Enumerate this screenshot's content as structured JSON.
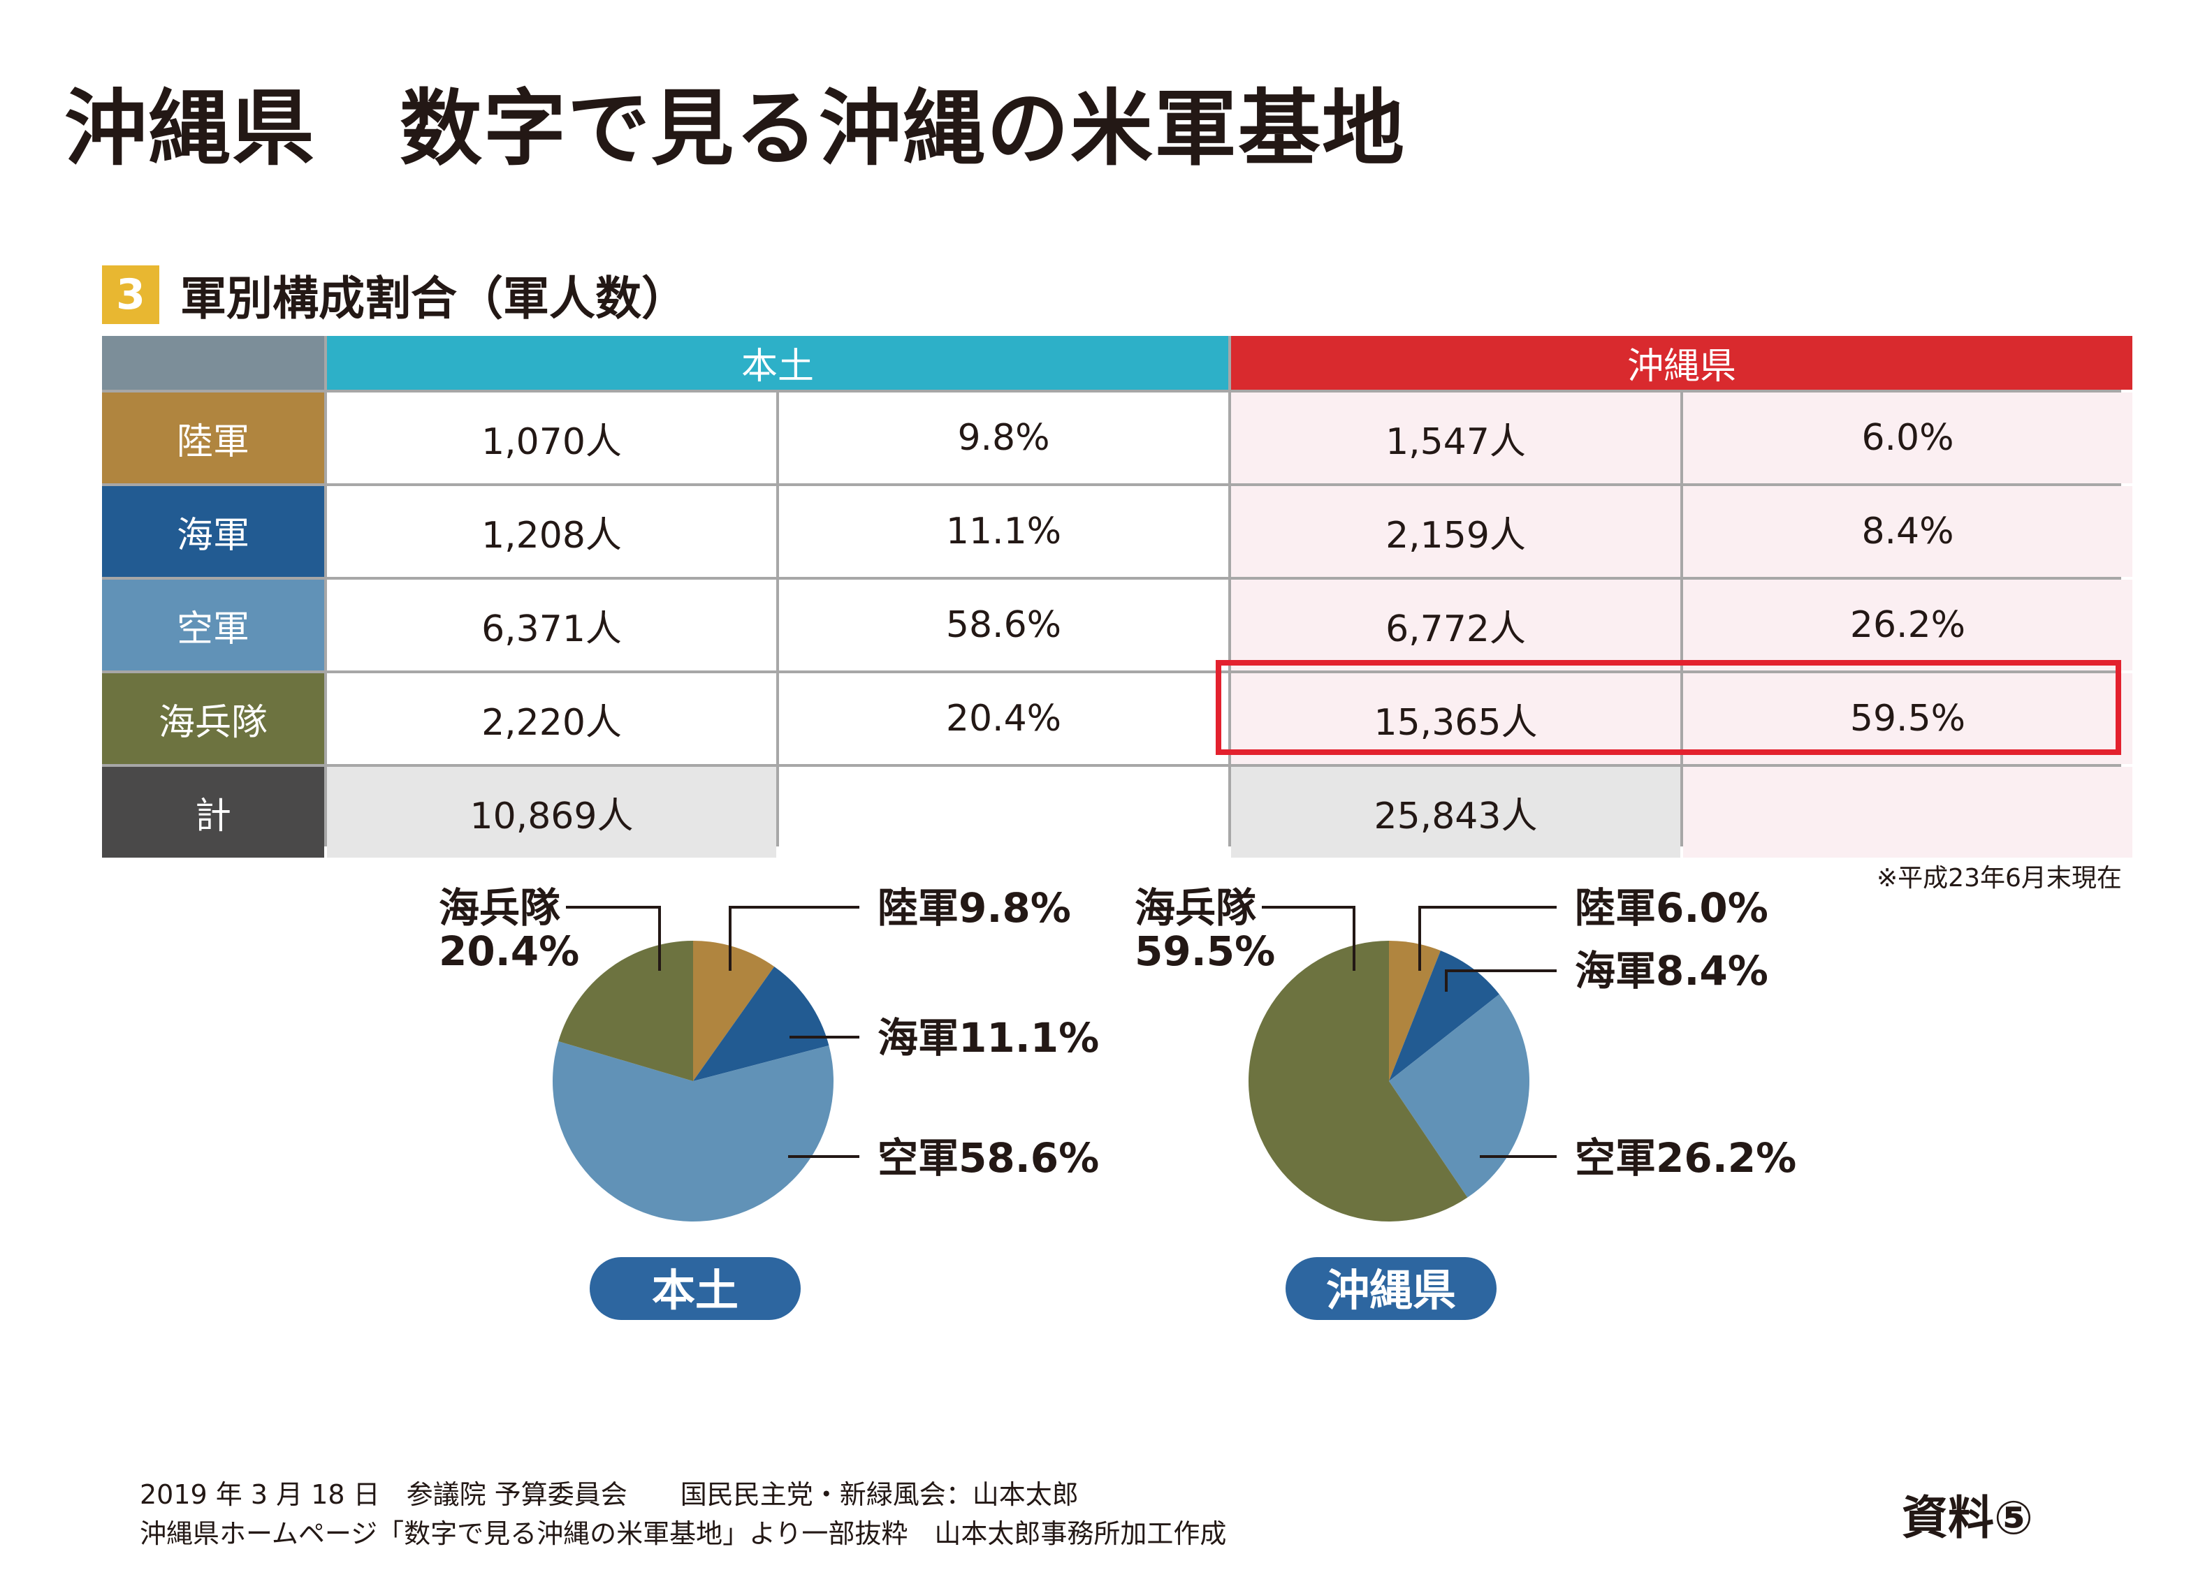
{
  "page_title": "沖縄県　数字で見る沖縄の米軍基地",
  "section": {
    "number": "3",
    "title": "軍別構成割合（軍人数）"
  },
  "colors": {
    "mainland_header": "#2db0c8",
    "okinawa_header": "#d92a2e",
    "corner": "#7c8e99",
    "army": "#b0853f",
    "navy": "#225b92",
    "air_force": "#6192b7",
    "marines": "#6d7340",
    "total": "#4a4949",
    "pill": "#2d66a0",
    "highlight": "#e3212e"
  },
  "table": {
    "headers": [
      "本土",
      "沖縄県"
    ],
    "rows": [
      {
        "label": "陸軍",
        "mainland_count": "1,070人",
        "mainland_pct": "9.8%",
        "okinawa_count": "1,547人",
        "okinawa_pct": "6.0%"
      },
      {
        "label": "海軍",
        "mainland_count": "1,208人",
        "mainland_pct": "11.1%",
        "okinawa_count": "2,159人",
        "okinawa_pct": "8.4%"
      },
      {
        "label": "空軍",
        "mainland_count": "6,371人",
        "mainland_pct": "58.6%",
        "okinawa_count": "6,772人",
        "okinawa_pct": "26.2%"
      },
      {
        "label": "海兵隊",
        "mainland_count": "2,220人",
        "mainland_pct": "20.4%",
        "okinawa_count": "15,365人",
        "okinawa_pct": "59.5%"
      },
      {
        "label": "計",
        "mainland_count": "10,869人",
        "mainland_pct": "",
        "okinawa_count": "25,843人",
        "okinawa_pct": ""
      }
    ]
  },
  "note": "※平成23年6月末現在",
  "chart_data": [
    {
      "type": "pie",
      "title": "本土",
      "categories": [
        "陸軍",
        "海軍",
        "空軍",
        "海兵隊"
      ],
      "values": [
        9.8,
        11.1,
        58.6,
        20.4
      ],
      "labels": {
        "army": "陸軍9.8%",
        "navy": "海軍11.1%",
        "air_force": "空軍58.6%",
        "marines_name": "海兵隊",
        "marines_pct": "20.4%"
      }
    },
    {
      "type": "pie",
      "title": "沖縄県",
      "categories": [
        "陸軍",
        "海軍",
        "空軍",
        "海兵隊"
      ],
      "values": [
        6.0,
        8.4,
        26.2,
        59.5
      ],
      "labels": {
        "army": "陸軍6.0%",
        "navy": "海軍8.4%",
        "air_force": "空軍26.2%",
        "marines_name": "海兵隊",
        "marines_pct": "59.5%"
      }
    }
  ],
  "footer": {
    "line1": "2019 年 3 月 18 日　参議院 予算委員会　　国民民主党・新緑風会：山本太郎",
    "line2": "沖縄県ホームページ「数字で見る沖縄の米軍基地」より一部抜粋　山本太郎事務所加工作成"
  },
  "doc_label": "資料⑤"
}
